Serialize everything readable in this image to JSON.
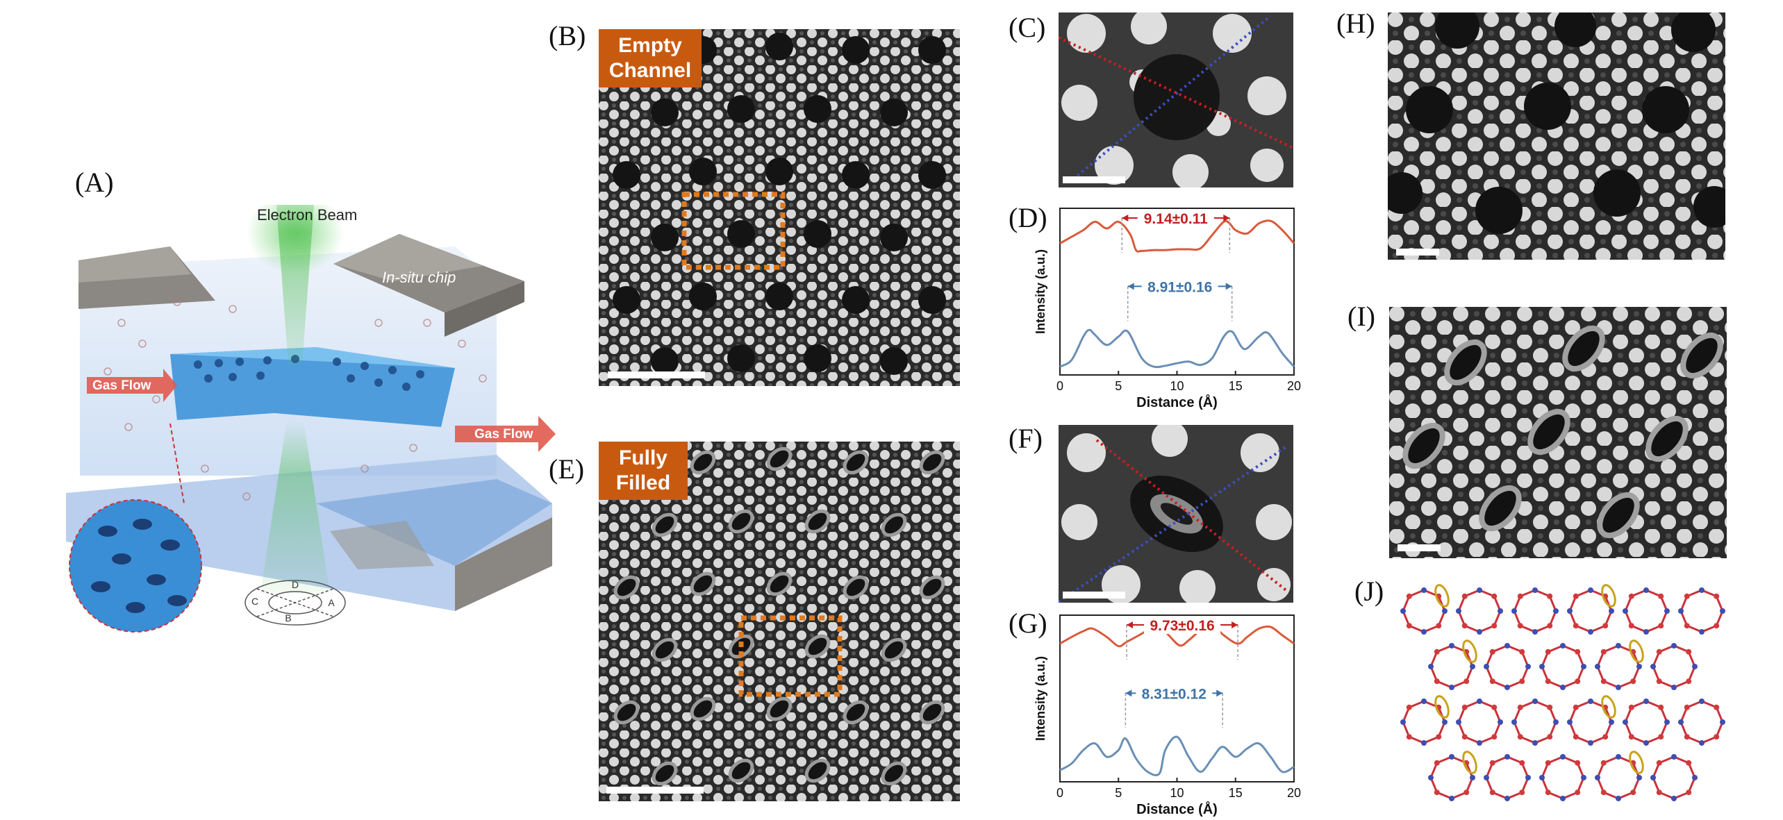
{
  "panels": {
    "A": "(A)",
    "B": "(B)",
    "C": "(C)",
    "D": "(D)",
    "E": "(E)",
    "F": "(F)",
    "G": "(G)",
    "H": "(H)",
    "I": "(I)",
    "J": "(J)"
  },
  "schematic": {
    "electron_beam": "Electron Beam",
    "in_situ_chip": "In-situ chip",
    "gas_flow_in": "Gas Flow",
    "gas_flow_out": "Gas Flow",
    "axes": [
      "D",
      "A",
      "B",
      "C"
    ]
  },
  "tags": {
    "empty_line1": "Empty",
    "empty_line2": "Channel",
    "filled_line1": "Fully",
    "filled_line2": "Filled"
  },
  "colors": {
    "orange_tag": "#c85a10",
    "red_curve": "#d95a3a",
    "blue_curve": "#6a8fb5",
    "red_line": "#cc1e1e",
    "blue_line": "#3a4fc0"
  },
  "chart_data": [
    {
      "type": "line",
      "panel": "D",
      "xlabel": "Distance (Å)",
      "ylabel": "Intensity (a.u.)",
      "xlim": [
        0,
        20
      ],
      "xticks": [
        "0",
        "5",
        "10",
        "15",
        "20"
      ],
      "annotations": [
        {
          "text": "9.14±0.11",
          "color": "red",
          "from": 5.3,
          "to": 14.5
        },
        {
          "text": "8.91±0.16",
          "color": "blue",
          "from": 5.8,
          "to": 14.7
        }
      ],
      "series": [
        {
          "name": "red",
          "x": [
            0,
            1,
            2,
            3,
            4,
            5,
            6,
            6.5,
            7,
            8,
            9,
            10,
            11,
            12,
            13,
            14,
            14.5,
            15,
            16,
            17,
            18,
            19,
            20
          ],
          "y": [
            0.62,
            0.7,
            0.78,
            0.88,
            0.8,
            0.88,
            0.73,
            0.54,
            0.53,
            0.54,
            0.54,
            0.55,
            0.55,
            0.56,
            0.72,
            0.88,
            0.86,
            0.78,
            0.74,
            0.86,
            0.89,
            0.78,
            0.62
          ]
        },
        {
          "name": "blue",
          "x": [
            0,
            1,
            2,
            2.5,
            3,
            4,
            5,
            5.8,
            7,
            8,
            9,
            10,
            11,
            12,
            13,
            14,
            14.7,
            15.5,
            16,
            17,
            17.8,
            19,
            20
          ],
          "y": [
            0.02,
            0.1,
            0.38,
            0.46,
            0.4,
            0.28,
            0.38,
            0.44,
            0.12,
            0.02,
            0.03,
            0.06,
            0.08,
            0.04,
            0.12,
            0.38,
            0.44,
            0.26,
            0.24,
            0.38,
            0.42,
            0.18,
            0.02
          ]
        }
      ]
    },
    {
      "type": "line",
      "panel": "G",
      "xlabel": "Distance (Å)",
      "ylabel": "Intensity (a.u.)",
      "xlim": [
        0,
        20
      ],
      "xticks": [
        "0",
        "5",
        "10",
        "15",
        "20"
      ],
      "annotations": [
        {
          "text": "9.73±0.16",
          "color": "red",
          "from": 5.7,
          "to": 15.2
        },
        {
          "text": "8.31±0.12",
          "color": "blue",
          "from": 5.6,
          "to": 13.9
        }
      ],
      "series": [
        {
          "name": "red",
          "x": [
            0,
            1,
            2,
            2.8,
            4,
            5,
            5.7,
            7,
            8,
            9,
            10.2,
            11,
            12,
            13,
            14,
            15.2,
            16,
            17,
            18,
            19,
            20
          ],
          "y": [
            0.7,
            0.78,
            0.85,
            0.88,
            0.78,
            0.67,
            0.72,
            0.82,
            0.9,
            0.84,
            0.68,
            0.74,
            0.86,
            0.92,
            0.8,
            0.7,
            0.78,
            0.88,
            0.9,
            0.8,
            0.7
          ]
        },
        {
          "name": "blue",
          "x": [
            0,
            1,
            2,
            3,
            4,
            5,
            5.6,
            6.5,
            7.5,
            8.5,
            9,
            10,
            11,
            12,
            13,
            13.9,
            15,
            16,
            17,
            18,
            19,
            20
          ],
          "y": [
            0.06,
            0.14,
            0.3,
            0.38,
            0.22,
            0.3,
            0.44,
            0.2,
            0.04,
            0.02,
            0.3,
            0.46,
            0.22,
            0.04,
            0.2,
            0.34,
            0.22,
            0.32,
            0.38,
            0.22,
            0.04,
            0.1
          ]
        }
      ]
    }
  ]
}
